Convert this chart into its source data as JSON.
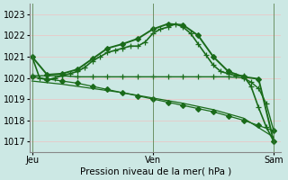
{
  "title": "Pression niveau de la mer( hPa )",
  "background_color": "#cce8e4",
  "grid_color": "#e8c8c8",
  "line_color": "#1a6b1a",
  "ylim": [
    1016.5,
    1023.5
  ],
  "yticks": [
    1017,
    1018,
    1019,
    1020,
    1021,
    1022,
    1023
  ],
  "xtick_labels": [
    "Jeu",
    "Ven",
    "Sam"
  ],
  "xtick_positions": [
    0,
    16,
    32
  ],
  "xlim": [
    -0.3,
    33.0
  ],
  "series": [
    {
      "x": [
        0,
        1,
        2,
        3,
        4,
        5,
        6,
        7,
        8,
        9,
        10,
        11,
        12,
        13,
        14,
        15,
        16,
        17,
        18,
        19,
        20,
        21,
        22,
        23,
        24,
        25,
        26,
        27,
        28,
        29,
        30,
        31,
        32
      ],
      "y": [
        1021.0,
        1020.0,
        1019.9,
        1020.0,
        1020.1,
        1020.2,
        1020.3,
        1020.5,
        1020.8,
        1021.0,
        1021.2,
        1021.3,
        1021.4,
        1021.5,
        1021.5,
        1021.7,
        1022.1,
        1022.3,
        1022.4,
        1022.55,
        1022.4,
        1022.1,
        1021.6,
        1021.1,
        1020.6,
        1020.3,
        1020.2,
        1020.1,
        1020.1,
        1019.6,
        1018.6,
        1017.7,
        1017.0
      ],
      "marker": "+",
      "markersize": 5,
      "linewidth": 1.2
    },
    {
      "x": [
        0,
        2,
        4,
        6,
        8,
        10,
        12,
        14,
        16,
        18,
        20,
        22,
        24,
        26,
        28,
        30,
        32
      ],
      "y": [
        1021.0,
        1020.15,
        1020.2,
        1020.4,
        1020.9,
        1021.4,
        1021.6,
        1021.85,
        1022.3,
        1022.55,
        1022.5,
        1022.0,
        1021.0,
        1020.3,
        1020.05,
        1019.95,
        1017.0
      ],
      "marker": "D",
      "markersize": 3,
      "linewidth": 1.4
    },
    {
      "x": [
        0,
        2,
        4,
        6,
        8,
        10,
        12,
        14,
        16,
        18,
        20,
        22,
        24,
        26,
        28,
        29,
        30,
        31,
        32
      ],
      "y": [
        1020.1,
        1020.1,
        1020.1,
        1020.05,
        1020.05,
        1020.05,
        1020.05,
        1020.05,
        1020.05,
        1020.05,
        1020.05,
        1020.05,
        1020.05,
        1020.05,
        1020.0,
        1019.8,
        1019.5,
        1018.8,
        1017.5
      ],
      "marker": "+",
      "markersize": 4,
      "linewidth": 1.0
    },
    {
      "x": [
        0,
        2,
        4,
        6,
        8,
        10,
        12,
        14,
        16,
        18,
        20,
        22,
        24,
        26,
        28,
        30,
        32
      ],
      "y": [
        1020.05,
        1019.95,
        1019.85,
        1019.75,
        1019.6,
        1019.45,
        1019.3,
        1019.15,
        1019.0,
        1018.85,
        1018.7,
        1018.55,
        1018.4,
        1018.2,
        1018.0,
        1017.75,
        1017.5
      ],
      "marker": "D",
      "markersize": 3,
      "linewidth": 0.9
    },
    {
      "x": [
        0,
        4,
        8,
        12,
        16,
        20,
        24,
        28,
        32
      ],
      "y": [
        1019.85,
        1019.7,
        1019.5,
        1019.3,
        1019.05,
        1018.8,
        1018.5,
        1018.1,
        1017.2
      ],
      "marker": null,
      "markersize": 0,
      "linewidth": 0.9
    }
  ]
}
